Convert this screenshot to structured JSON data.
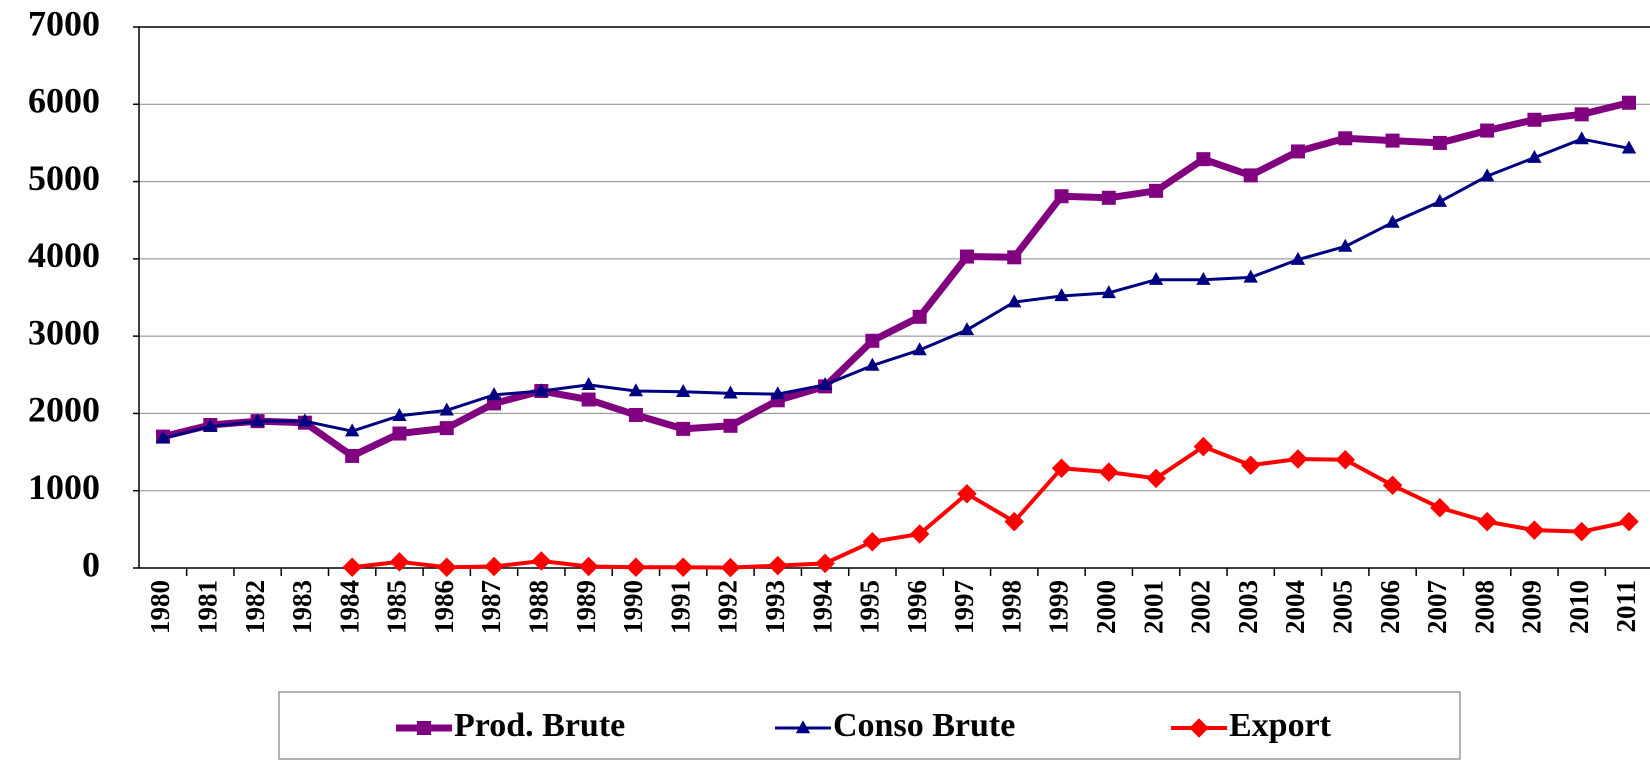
{
  "chart_data": {
    "type": "line",
    "categories": [
      "1980",
      "1981",
      "1982",
      "1983",
      "1984",
      "1985",
      "1986",
      "1987",
      "1988",
      "1989",
      "1990",
      "1991",
      "1992",
      "1993",
      "1994",
      "1995",
      "1996",
      "1997",
      "1998",
      "1999",
      "2000",
      "2001",
      "2002",
      "2003",
      "2004",
      "2005",
      "2006",
      "2007",
      "2008",
      "2009",
      "2010",
      "2011"
    ],
    "series": [
      {
        "name": "Prod. Brute",
        "color": "#800080",
        "marker": "square",
        "values": [
          1700,
          1850,
          1900,
          1880,
          1450,
          1740,
          1810,
          2130,
          2290,
          2180,
          1980,
          1800,
          1840,
          2170,
          2350,
          2940,
          3250,
          4030,
          4020,
          4810,
          4790,
          4880,
          5290,
          5080,
          5390,
          5560,
          5530,
          5500,
          5660,
          5800,
          5870,
          6020
        ]
      },
      {
        "name": "Conso Brute",
        "color": "#000080",
        "marker": "triangle",
        "values": [
          1680,
          1830,
          1900,
          1900,
          1770,
          1970,
          2040,
          2240,
          2290,
          2370,
          2290,
          2280,
          2260,
          2250,
          2370,
          2620,
          2820,
          3080,
          3440,
          3520,
          3560,
          3730,
          3730,
          3760,
          3990,
          4160,
          4470,
          4740,
          5070,
          5310,
          5550,
          5430
        ]
      },
      {
        "name": "Export",
        "color": "#ff0000",
        "marker": "diamond",
        "values": [
          null,
          null,
          null,
          null,
          10,
          80,
          10,
          20,
          90,
          20,
          10,
          10,
          5,
          30,
          60,
          340,
          440,
          960,
          600,
          1290,
          1240,
          1160,
          1570,
          1330,
          1410,
          1400,
          1070,
          780,
          600,
          490,
          470,
          600
        ]
      }
    ],
    "ylim": [
      0,
      7000
    ],
    "yticks": [
      0,
      1000,
      2000,
      3000,
      4000,
      5000,
      6000,
      7000
    ],
    "grid": true,
    "legend": "bottom"
  }
}
